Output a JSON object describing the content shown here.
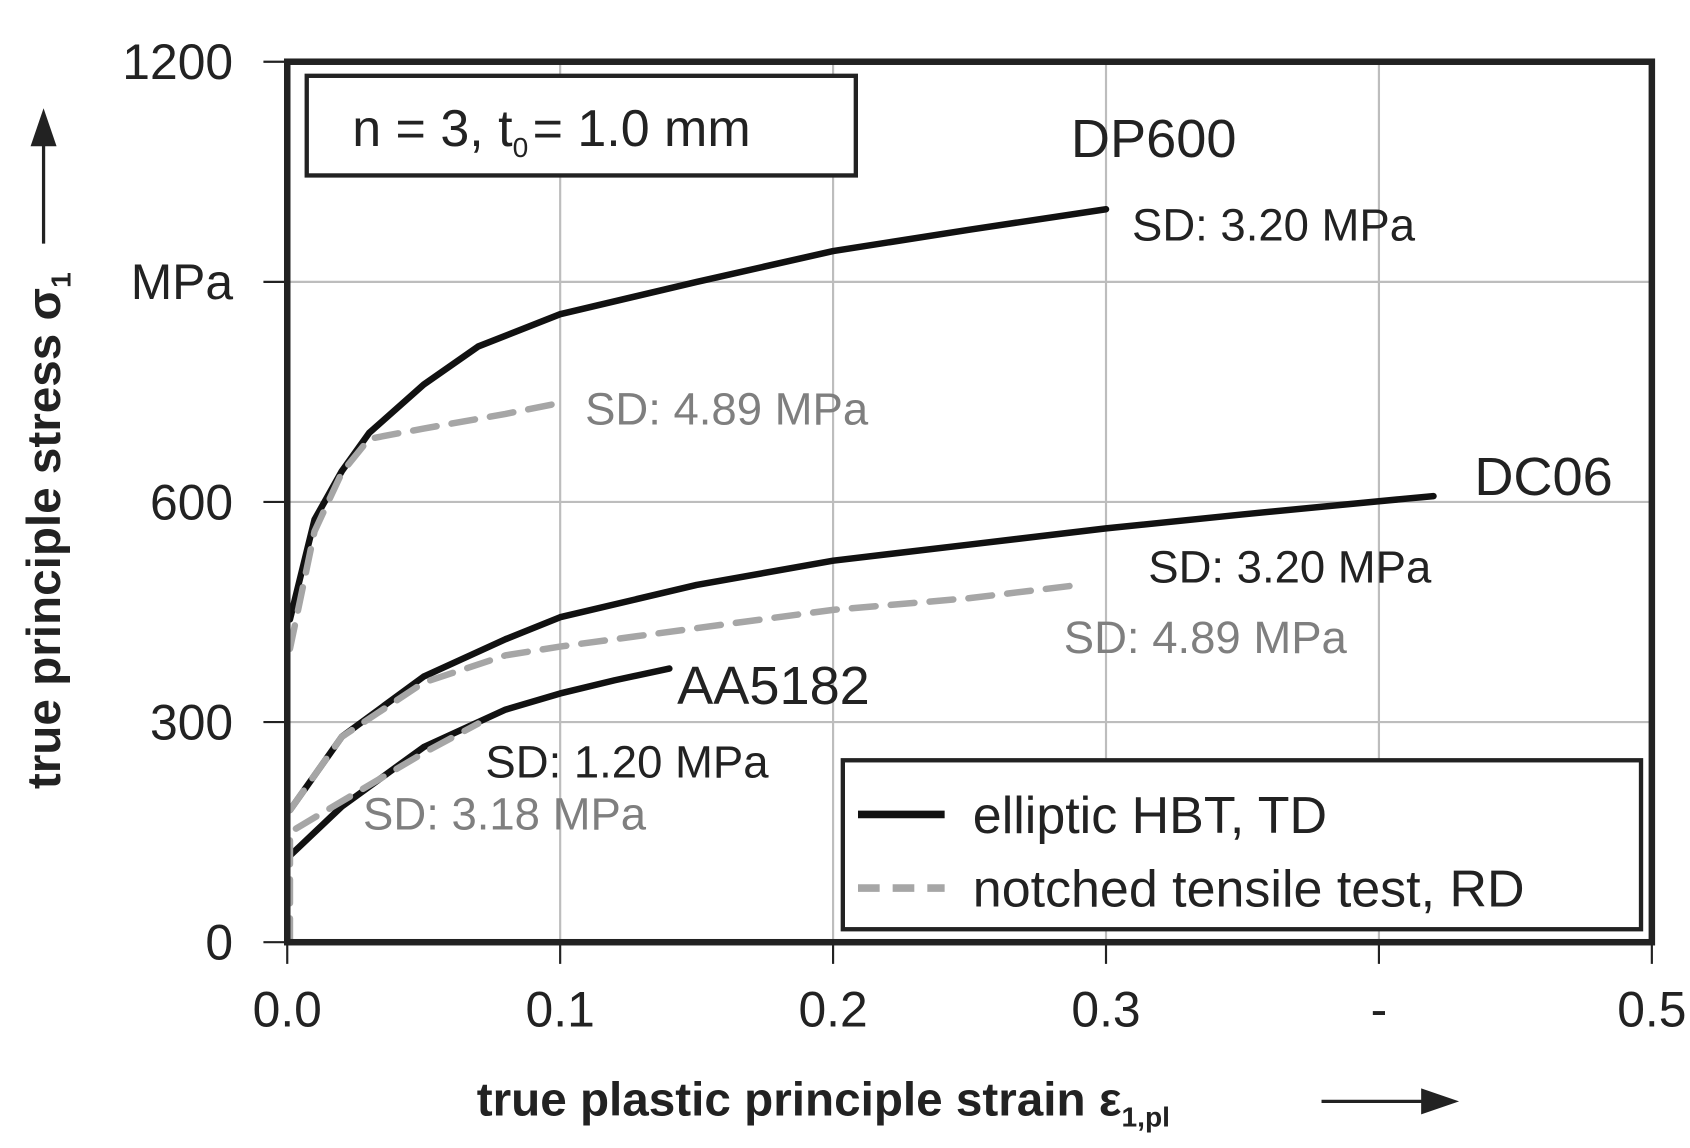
{
  "chart_data": {
    "type": "line",
    "x_label": {
      "text": "true plastic principle strain ε",
      "sub": "1,pl"
    },
    "y_label": {
      "text": "true principle stress σ",
      "sub": "1"
    },
    "box_note": {
      "text": "n = 3, t",
      "sub": "0",
      "rest": "= 1.0 mm"
    },
    "xlim": [
      0,
      0.5
    ],
    "ylim": [
      0,
      1200
    ],
    "xticks": [
      {
        "value": 0,
        "label": "0.0"
      },
      0.1,
      0.2,
      0.3,
      {
        "value": 0.4,
        "label": "-"
      },
      0.5
    ],
    "yticks": [
      0,
      300,
      600,
      {
        "value": 900,
        "label": "MPa"
      },
      1200
    ],
    "grid": true,
    "legend": "lower right",
    "series": [
      {
        "name": "elliptic HBT, TD",
        "color": "#111111",
        "dashed": false,
        "curves": [
          {
            "label": "DP600",
            "sd": "SD: 3.20 MPa",
            "x": [
              0.001,
              0.01,
              0.02,
              0.03,
              0.05,
              0.07,
              0.1,
              0.15,
              0.2,
              0.25,
              0.3
            ],
            "values": [
              440,
              576,
              642,
              694,
              760,
              812,
              856,
              900,
              942,
              971,
              999
            ]
          },
          {
            "label": "DC06",
            "sd": "SD: 3.20 MPa",
            "x": [
              0.001,
              0.02,
              0.05,
              0.08,
              0.1,
              0.15,
              0.2,
              0.25,
              0.3,
              0.35,
              0.4,
              0.42
            ],
            "values": [
              180,
              280,
              362,
              413,
              443,
              487,
              520,
              542,
              564,
              583,
              601,
              608
            ]
          },
          {
            "label": "AA5182",
            "sd": "SD: 1.20 MPa",
            "x": [
              0.001,
              0.02,
              0.05,
              0.08,
              0.1,
              0.12,
              0.14
            ],
            "values": [
              118,
              185,
              266,
              317,
              339,
              357,
              373
            ]
          }
        ]
      },
      {
        "name": "notched tensile test, RD",
        "color": "#a6a6a6",
        "dashed": true,
        "curves": [
          {
            "sd": "SD: 4.89 MPa",
            "x": [
              0.001,
              0.01,
              0.02,
              0.03,
              0.05,
              0.08,
              0.1
            ],
            "values": [
              400,
              560,
              640,
              686,
              700,
              720,
              735
            ]
          },
          {
            "sd": "SD: 4.89 MPa",
            "x": [
              0.001,
              0.02,
              0.05,
              0.08,
              0.1,
              0.15,
              0.2,
              0.25,
              0.29
            ],
            "values": [
              180,
              280,
              354,
              391,
              403,
              428,
              453,
              469,
              487
            ]
          },
          {
            "sd": "SD: 3.18 MPa",
            "x": [
              0.001,
              0.001,
              0.02,
              0.05,
              0.07
            ],
            "values": [
              0,
              150,
              192,
              258,
              298
            ]
          }
        ]
      }
    ]
  }
}
